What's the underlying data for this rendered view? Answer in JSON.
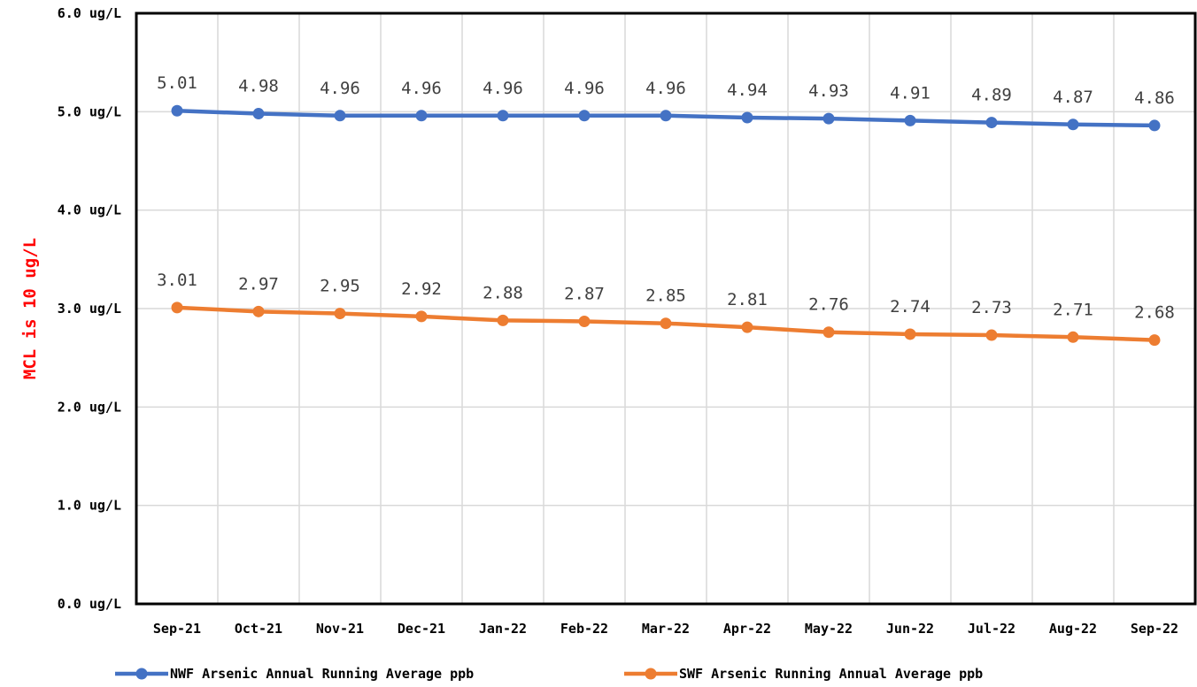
{
  "chart_data": {
    "type": "line",
    "title": "",
    "xlabel": "",
    "ylabel": "MCL is 10 ug/L",
    "ylim": [
      0,
      6
    ],
    "y_ticks": [
      "0.0 ug/L",
      "1.0 ug/L",
      "2.0 ug/L",
      "3.0 ug/L",
      "4.0 ug/L",
      "5.0 ug/L",
      "6.0 ug/L"
    ],
    "categories": [
      "Sep-21",
      "Oct-21",
      "Nov-21",
      "Dec-21",
      "Jan-22",
      "Feb-22",
      "Mar-22",
      "Apr-22",
      "May-22",
      "Jun-22",
      "Jul-22",
      "Aug-22",
      "Sep-22"
    ],
    "series": [
      {
        "name": "NWF Arsenic Annual Running Average ppb",
        "color": "#4472c4",
        "values": [
          5.01,
          4.98,
          4.96,
          4.96,
          4.96,
          4.96,
          4.96,
          4.94,
          4.93,
          4.91,
          4.89,
          4.87,
          4.86
        ]
      },
      {
        "name": "SWF Arsenic Running Annual Average ppb",
        "color": "#ed7d31",
        "values": [
          3.01,
          2.97,
          2.95,
          2.92,
          2.88,
          2.87,
          2.85,
          2.81,
          2.76,
          2.74,
          2.73,
          2.71,
          2.68
        ]
      }
    ],
    "grid": true,
    "legend": "bottom"
  }
}
